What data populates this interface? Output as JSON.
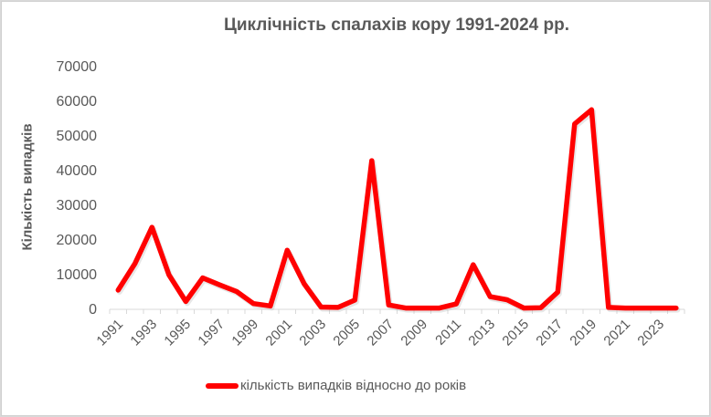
{
  "chart_data": {
    "type": "line",
    "title": "Циклічність спалахів кору 1991-2024 рр.",
    "xlabel": "",
    "ylabel": "Кількість випадків",
    "ylim": [
      0,
      70000
    ],
    "yticks": [
      0,
      10000,
      20000,
      30000,
      40000,
      50000,
      60000,
      70000
    ],
    "x_tick_labels": [
      "1991",
      "1993",
      "1995",
      "1997",
      "1999",
      "2001",
      "2003",
      "2005",
      "2007",
      "2009",
      "2011",
      "2013",
      "2015",
      "2017",
      "2019",
      "2021",
      "2023"
    ],
    "grid": false,
    "legend_position": "bottom",
    "categories": [
      1991,
      1992,
      1993,
      1994,
      1995,
      1996,
      1997,
      1998,
      1999,
      2000,
      2001,
      2002,
      2003,
      2004,
      2005,
      2006,
      2007,
      2008,
      2009,
      2010,
      2011,
      2012,
      2013,
      2014,
      2015,
      2016,
      2017,
      2018,
      2019,
      2020,
      2021,
      2022,
      2023,
      2024
    ],
    "series": [
      {
        "name": "кількість випадків відносно до років",
        "color": "#ff0000",
        "values": [
          5300,
          13000,
          23400,
          9700,
          2000,
          8800,
          6800,
          4900,
          1400,
          700,
          16800,
          7100,
          400,
          300,
          2400,
          42600,
          1000,
          100,
          100,
          100,
          1300,
          12600,
          3400,
          2500,
          100,
          200,
          4700,
          53200,
          57300,
          300,
          100,
          100,
          100,
          100
        ]
      }
    ]
  },
  "legend": {
    "label": "кількість випадків відносно до років"
  }
}
